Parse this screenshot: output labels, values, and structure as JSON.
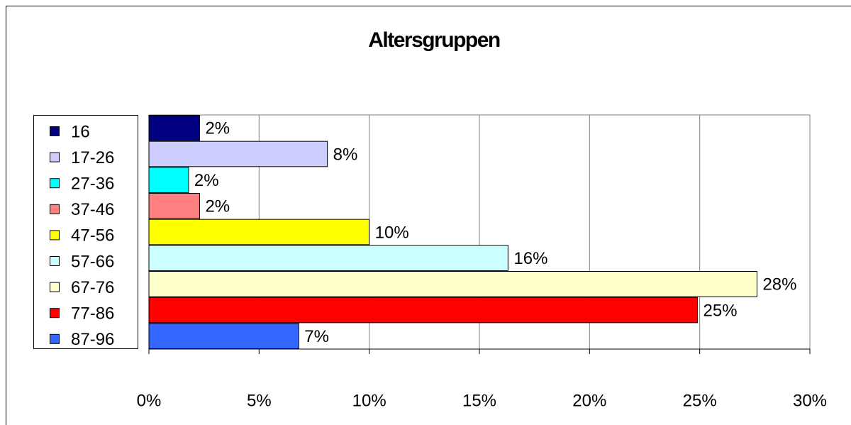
{
  "chart_data": {
    "type": "bar",
    "orientation": "horizontal",
    "title": "Altersgruppen",
    "categories": [
      "16",
      "17-26",
      "27-36",
      "37-46",
      "47-56",
      "57-66",
      "67-76",
      "77-86",
      "87-96"
    ],
    "values": [
      2.3,
      8.1,
      1.8,
      2.3,
      10.0,
      16.3,
      27.6,
      24.9,
      6.8
    ],
    "value_labels": [
      "2%",
      "8%",
      "2%",
      "2%",
      "10%",
      "16%",
      "28%",
      "25%",
      "7%"
    ],
    "colors": [
      "#000080",
      "#ccccff",
      "#00ffff",
      "#ff8080",
      "#ffff00",
      "#ccffff",
      "#ffffcc",
      "#ff0000",
      "#3366ff"
    ],
    "xlim": [
      0,
      30
    ],
    "xticks": [
      {
        "value": 0,
        "label": "0%"
      },
      {
        "value": 5,
        "label": "5%"
      },
      {
        "value": 10,
        "label": "10%"
      },
      {
        "value": 15,
        "label": "15%"
      },
      {
        "value": 20,
        "label": "20%"
      },
      {
        "value": 25,
        "label": "25%"
      },
      {
        "value": 30,
        "label": "30%"
      }
    ],
    "grid": true,
    "legend": "left"
  }
}
